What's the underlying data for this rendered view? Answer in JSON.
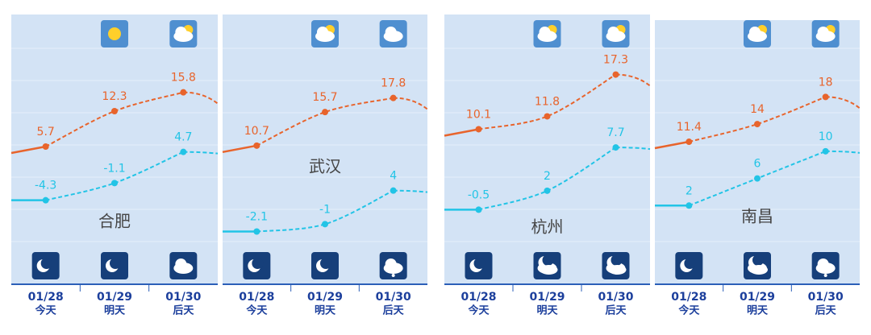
{
  "chart_data": [
    {
      "type": "line",
      "title": "合肥",
      "categories": [
        "01/28",
        "01/29",
        "01/30"
      ],
      "category_sublabels": [
        "今天",
        "明天",
        "后天"
      ],
      "series": [
        {
          "color": "#e8642c",
          "values": [
            5.7,
            12.3,
            15.8
          ]
        },
        {
          "color": "#22c4e6",
          "values": [
            -4.3,
            -1.1,
            4.7
          ]
        }
      ],
      "ylim": [
        -12,
        30
      ]
    },
    {
      "type": "line",
      "title": "武汉",
      "categories": [
        "01/28",
        "01/29",
        "01/30"
      ],
      "category_sublabels": [
        "今天",
        "明天",
        "后天"
      ],
      "series": [
        {
          "color": "#e8642c",
          "values": [
            10.7,
            15.7,
            17.8
          ]
        },
        {
          "color": "#22c4e6",
          "values": [
            -2.1,
            -1,
            4
          ]
        }
      ],
      "ylim": [
        -3.6,
        30
      ]
    },
    {
      "type": "line",
      "title": "杭州",
      "categories": [
        "01/28",
        "01/29",
        "01/30"
      ],
      "category_sublabels": [
        "今天",
        "明天",
        "后天"
      ],
      "series": [
        {
          "color": "#e8642c",
          "values": [
            10.1,
            11.8,
            17.3
          ]
        },
        {
          "color": "#22c4e6",
          "values": [
            -0.5,
            2,
            7.7
          ]
        }
      ],
      "ylim": [
        -4.7,
        25
      ]
    },
    {
      "type": "line",
      "title": "南昌",
      "categories": [
        "01/28",
        "01/29",
        "01/30"
      ],
      "category_sublabels": [
        "今天",
        "明天",
        "后天"
      ],
      "series": [
        {
          "color": "#e8642c",
          "values": [
            11.4,
            14,
            18
          ]
        },
        {
          "color": "#22c4e6",
          "values": [
            2,
            6,
            10
          ]
        }
      ],
      "ylim": [
        -3.3,
        29.9
      ]
    }
  ]
}
